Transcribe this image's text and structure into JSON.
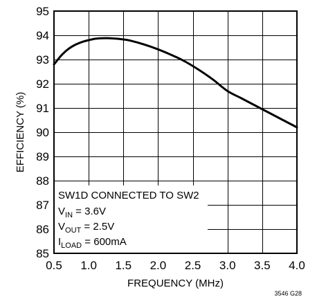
{
  "chart_data": {
    "type": "line",
    "title": "",
    "xlabel": "FREQUENCY (MHz)",
    "ylabel": "EFFICIENCY (%)",
    "xlim": [
      0.5,
      4.0
    ],
    "ylim": [
      85,
      95
    ],
    "grid": true,
    "x_ticks": [
      "0.5",
      "1.0",
      "1.5",
      "2.0",
      "2.5",
      "3.0",
      "3.5",
      "4.0"
    ],
    "y_ticks": [
      "85",
      "86",
      "87",
      "88",
      "89",
      "90",
      "91",
      "92",
      "93",
      "94",
      "95"
    ],
    "series": [
      {
        "x": [
          0.5,
          0.6,
          0.7,
          0.8,
          0.9,
          1.0,
          1.1,
          1.2,
          1.3,
          1.4,
          1.5,
          1.6,
          1.8,
          2.0,
          2.2,
          2.4,
          2.6,
          2.8,
          3.0,
          3.2,
          3.4,
          3.6,
          3.8,
          4.0
        ],
        "y": [
          92.8,
          93.15,
          93.42,
          93.6,
          93.72,
          93.8,
          93.86,
          93.88,
          93.88,
          93.86,
          93.83,
          93.78,
          93.62,
          93.42,
          93.18,
          92.9,
          92.55,
          92.15,
          91.7,
          91.4,
          91.1,
          90.8,
          90.5,
          90.2
        ]
      }
    ],
    "annotations": {
      "line1": "SW1D CONNECTED TO SW2",
      "vin_main": "V",
      "vin_sub": "IN",
      "vin_value": " = 3.6V",
      "vout_main": "V",
      "vout_sub": "OUT",
      "vout_value": " = 2.5V",
      "iload_main": "I",
      "iload_sub": "LOAD",
      "iload_value": " = 600mA"
    },
    "figure_code": "3546 G28"
  }
}
